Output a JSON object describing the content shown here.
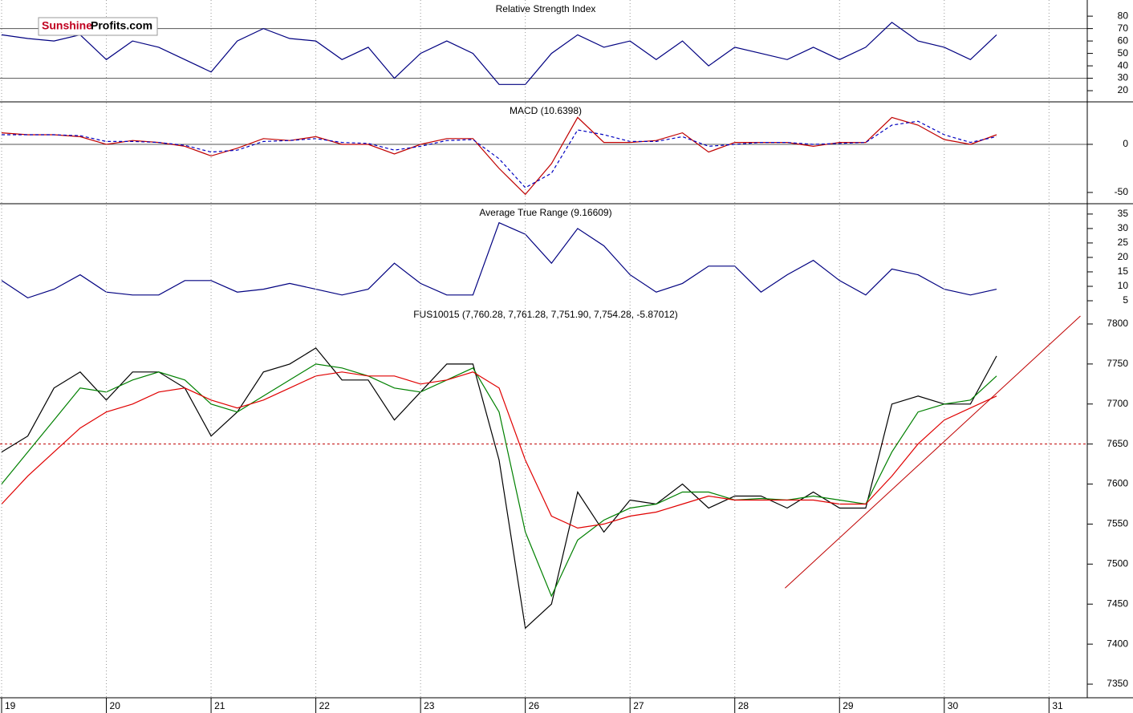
{
  "logo": {
    "part1": "Sunshine",
    "part2": "Profits.com"
  },
  "chart_data": [
    {
      "type": "line",
      "title": "Relative Strength Index",
      "x": [
        0,
        0.25,
        0.5,
        0.75,
        1,
        1.25,
        1.5,
        1.75,
        2,
        2.25,
        2.5,
        2.75,
        3,
        3.25,
        3.5,
        3.75,
        4,
        4.25,
        4.5,
        4.75,
        5,
        5.25,
        5.5,
        5.75,
        6,
        6.25,
        6.5,
        6.75,
        7,
        7.25,
        7.5,
        7.75,
        8,
        8.25,
        8.5,
        8.75,
        9,
        9.25,
        9.5
      ],
      "series": [
        {
          "color": "#000080",
          "values": [
            65,
            62,
            60,
            65,
            45,
            60,
            55,
            45,
            35,
            60,
            70,
            62,
            60,
            45,
            55,
            30,
            50,
            60,
            50,
            25,
            25,
            50,
            65,
            55,
            60,
            45,
            60,
            40,
            55,
            50,
            45,
            55,
            45,
            55,
            75,
            60,
            55,
            45,
            65
          ]
        }
      ],
      "xlim": [
        0,
        10.35
      ],
      "ylim": [
        11,
        93
      ],
      "yticks": [
        20,
        30,
        40,
        50,
        60,
        70,
        80
      ],
      "hlines": [
        30,
        70
      ]
    },
    {
      "type": "line",
      "title": "MACD (10.6398)",
      "x": [
        0,
        0.25,
        0.5,
        0.75,
        1,
        1.25,
        1.5,
        1.75,
        2,
        2.25,
        2.5,
        2.75,
        3,
        3.25,
        3.5,
        3.75,
        4,
        4.25,
        4.5,
        4.75,
        5,
        5.25,
        5.5,
        5.75,
        6,
        6.25,
        6.5,
        6.75,
        7,
        7.25,
        7.5,
        7.75,
        8,
        8.25,
        8.5,
        8.75,
        9,
        9.25,
        9.5
      ],
      "series": [
        {
          "color": "#c00000",
          "dash": false,
          "values": [
            12,
            10,
            10,
            8,
            0,
            4,
            2,
            -2,
            -12,
            -4,
            6,
            4,
            8,
            0,
            0,
            -10,
            0,
            6,
            6,
            -25,
            -52,
            -20,
            28,
            2,
            2,
            4,
            12,
            -8,
            2,
            2,
            2,
            -2,
            2,
            2,
            28,
            20,
            5,
            0,
            10
          ]
        },
        {
          "color": "#0000c0",
          "dash": true,
          "values": [
            10,
            10,
            10,
            9,
            3,
            3,
            2,
            -1,
            -8,
            -6,
            3,
            4,
            6,
            2,
            1,
            -6,
            -2,
            4,
            5,
            -15,
            -45,
            -30,
            15,
            10,
            3,
            3,
            8,
            -2,
            0,
            2,
            2,
            0,
            1,
            2,
            20,
            24,
            10,
            2,
            8
          ]
        }
      ],
      "xlim": [
        0,
        10.35
      ],
      "ylim": [
        -61.7,
        43.3
      ],
      "yticks": [
        -50,
        0
      ],
      "hlines": [
        0
      ]
    },
    {
      "type": "line",
      "title": "Average True Range (9.16609)",
      "x": [
        0,
        0.25,
        0.5,
        0.75,
        1,
        1.25,
        1.5,
        1.75,
        2,
        2.25,
        2.5,
        2.75,
        3,
        3.25,
        3.5,
        3.75,
        4,
        4.25,
        4.5,
        4.75,
        5,
        5.25,
        5.5,
        5.75,
        6,
        6.25,
        6.5,
        6.75,
        7,
        7.25,
        7.5,
        7.75,
        8,
        8.25,
        8.5,
        8.75,
        9,
        9.25,
        9.5
      ],
      "series": [
        {
          "color": "#000080",
          "values": [
            12,
            6,
            9,
            14,
            8,
            7,
            7,
            12,
            12,
            8,
            9,
            11,
            9,
            7,
            9,
            18,
            11,
            7,
            7,
            32,
            28,
            18,
            30,
            24,
            14,
            8,
            11,
            17,
            17,
            8,
            14,
            19,
            12,
            7,
            16,
            14,
            9,
            7,
            9
          ]
        }
      ],
      "xlim": [
        0,
        10.35
      ],
      "ylim": [
        3.06,
        38.3
      ],
      "yticks": [
        5,
        10,
        15,
        20,
        25,
        30,
        35
      ],
      "hlines": []
    },
    {
      "type": "line",
      "title": "FUS10015 (7,760.28, 7,761.28, 7,751.90, 7,754.28, -5.87012)",
      "x": [
        0,
        0.25,
        0.5,
        0.75,
        1,
        1.25,
        1.5,
        1.75,
        2,
        2.25,
        2.5,
        2.75,
        3,
        3.25,
        3.5,
        3.75,
        4,
        4.25,
        4.5,
        4.75,
        5,
        5.25,
        5.5,
        5.75,
        6,
        6.25,
        6.5,
        6.75,
        7,
        7.25,
        7.5,
        7.75,
        8,
        8.25,
        8.5,
        8.75,
        9,
        9.25,
        9.5
      ],
      "series": [
        {
          "color": "#000000",
          "values": [
            7640,
            7660,
            7720,
            7740,
            7705,
            7740,
            7740,
            7720,
            7660,
            7690,
            7740,
            7750,
            7770,
            7730,
            7730,
            7680,
            7715,
            7750,
            7750,
            7630,
            7420,
            7450,
            7590,
            7540,
            7580,
            7575,
            7600,
            7570,
            7585,
            7585,
            7570,
            7590,
            7570,
            7570,
            7700,
            7710,
            7700,
            7700,
            7760
          ]
        },
        {
          "color": "#008000",
          "values": [
            7600,
            7640,
            7680,
            7720,
            7715,
            7730,
            7740,
            7730,
            7700,
            7690,
            7710,
            7730,
            7750,
            7745,
            7735,
            7720,
            7715,
            7730,
            7745,
            7690,
            7540,
            7460,
            7530,
            7555,
            7570,
            7575,
            7590,
            7590,
            7580,
            7582,
            7580,
            7585,
            7580,
            7575,
            7640,
            7690,
            7700,
            7705,
            7735
          ]
        },
        {
          "color": "#e00000",
          "values": [
            7575,
            7610,
            7640,
            7670,
            7690,
            7700,
            7715,
            7720,
            7705,
            7695,
            7705,
            7720,
            7735,
            7740,
            7735,
            7735,
            7725,
            7730,
            7740,
            7720,
            7630,
            7560,
            7545,
            7550,
            7560,
            7565,
            7575,
            7585,
            7580,
            7580,
            7580,
            7580,
            7575,
            7575,
            7610,
            7650,
            7680,
            7695,
            7710
          ]
        }
      ],
      "xlim": [
        0,
        10.35
      ],
      "ylim": [
        7333,
        7821
      ],
      "yticks": [
        7350,
        7400,
        7450,
        7500,
        7550,
        7600,
        7650,
        7700,
        7750,
        7800
      ],
      "hlines": [
        7650
      ],
      "hline_color": "#c00000",
      "hline_dash": true,
      "trendline": {
        "x": [
          7.48,
          10.3
        ],
        "y": [
          7470,
          7810
        ],
        "color": "#c00000"
      },
      "xticks": [
        {
          "value": 0,
          "label": "19"
        },
        {
          "value": 1,
          "label": "20"
        },
        {
          "value": 2,
          "label": "21"
        },
        {
          "value": 3,
          "label": "22"
        },
        {
          "value": 4,
          "label": "23"
        },
        {
          "value": 5,
          "label": "26"
        },
        {
          "value": 6,
          "label": "27"
        },
        {
          "value": 7,
          "label": "28"
        },
        {
          "value": 8,
          "label": "29"
        },
        {
          "value": 9,
          "label": "30"
        },
        {
          "value": 10,
          "label": "31"
        }
      ]
    }
  ]
}
